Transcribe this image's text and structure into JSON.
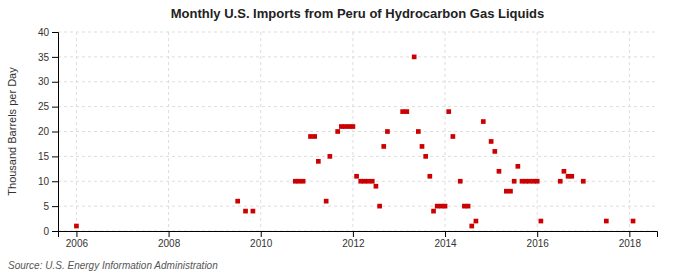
{
  "chart_data": {
    "type": "scatter",
    "title": "Monthly U.S. Imports from Peru of Hydrocarbon Gas Liquids",
    "ylabel": "Thousand Barrels per Day",
    "annotations": [
      "Source: U.S. Energy Information Administration"
    ],
    "color": "#cc0000",
    "marker": "square",
    "grid": true,
    "xlim": [
      2005.6,
      2018.6
    ],
    "ylim": [
      0,
      40
    ],
    "xticks": [
      2006,
      2008,
      2010,
      2012,
      2014,
      2016,
      2018
    ],
    "yticks": [
      0,
      5,
      10,
      15,
      20,
      25,
      30,
      35,
      40
    ],
    "x": [
      2006.0,
      2009.5,
      2009.67,
      2009.83,
      2010.75,
      2010.83,
      2010.92,
      2011.08,
      2011.17,
      2011.25,
      2011.42,
      2011.5,
      2011.67,
      2011.75,
      2011.83,
      2011.92,
      2012.0,
      2012.08,
      2012.17,
      2012.25,
      2012.33,
      2012.42,
      2012.5,
      2012.58,
      2012.67,
      2012.75,
      2013.08,
      2013.17,
      2013.33,
      2013.42,
      2013.5,
      2013.58,
      2013.67,
      2013.75,
      2013.83,
      2013.92,
      2014.0,
      2014.08,
      2014.17,
      2014.33,
      2014.42,
      2014.5,
      2014.58,
      2014.67,
      2014.83,
      2015.0,
      2015.08,
      2015.17,
      2015.33,
      2015.42,
      2015.5,
      2015.58,
      2015.67,
      2015.75,
      2015.83,
      2015.92,
      2016.0,
      2016.08,
      2016.5,
      2016.58,
      2016.67,
      2016.75,
      2017.0,
      2017.5,
      2018.08
    ],
    "values": [
      1,
      6,
      4,
      4,
      10,
      10,
      10,
      19,
      19,
      14,
      6,
      15,
      20,
      21,
      21,
      21,
      21,
      11,
      10,
      10,
      10,
      10,
      9,
      5,
      17,
      20,
      24,
      24,
      35,
      20,
      17,
      15,
      11,
      4,
      5,
      5,
      5,
      24,
      19,
      10,
      5,
      5,
      1,
      2,
      22,
      18,
      16,
      12,
      8,
      8,
      10,
      13,
      10,
      10,
      10,
      10,
      10,
      2,
      10,
      12,
      11,
      11,
      10,
      2,
      2
    ]
  }
}
